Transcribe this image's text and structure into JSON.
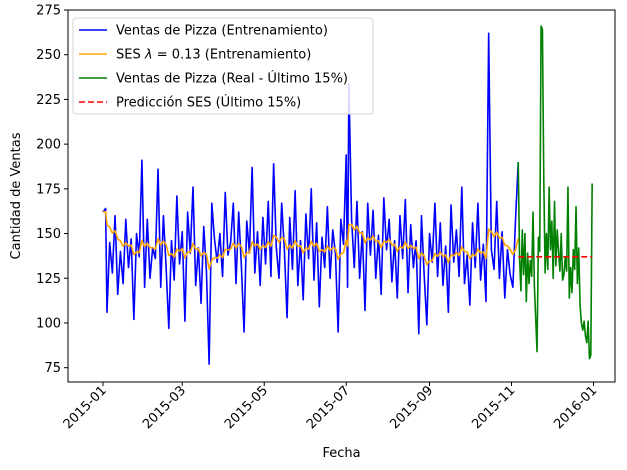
{
  "chart_data": {
    "type": "line",
    "xlabel": "Fecha",
    "ylabel": "Cantidad de Ventas",
    "xlim": [
      "2014-12-06",
      "2016-01-17"
    ],
    "ylim": [
      67,
      275
    ],
    "x_ticks": [
      "2015-01",
      "2015-03",
      "2015-05",
      "2015-07",
      "2015-09",
      "2015-11",
      "2016-01"
    ],
    "x_tick_dates": [
      "2015-01-01",
      "2015-03-01",
      "2015-05-01",
      "2015-07-01",
      "2015-09-01",
      "2015-11-01",
      "2016-01-01"
    ],
    "y_ticks": [
      75,
      100,
      125,
      150,
      175,
      200,
      225,
      250,
      275
    ],
    "grid": false,
    "legend_position": "top-left",
    "series": [
      {
        "name": "Ventas de Pizza (Entrenamiento)",
        "color": "#0000ff",
        "style": "solid",
        "points": [
          [
            "2015-01-01",
            162
          ],
          [
            "2015-01-03",
            164
          ],
          [
            "2015-01-04",
            106
          ],
          [
            "2015-01-06",
            145
          ],
          [
            "2015-01-08",
            128
          ],
          [
            "2015-01-10",
            160
          ],
          [
            "2015-01-12",
            116
          ],
          [
            "2015-01-14",
            140
          ],
          [
            "2015-01-16",
            122
          ],
          [
            "2015-01-18",
            158
          ],
          [
            "2015-01-20",
            131
          ],
          [
            "2015-01-22",
            147
          ],
          [
            "2015-01-24",
            102
          ],
          [
            "2015-01-26",
            150
          ],
          [
            "2015-01-28",
            137
          ],
          [
            "2015-01-30",
            191
          ],
          [
            "2015-02-01",
            120
          ],
          [
            "2015-02-03",
            158
          ],
          [
            "2015-02-05",
            125
          ],
          [
            "2015-02-07",
            142
          ],
          [
            "2015-02-09",
            136
          ],
          [
            "2015-02-11",
            186
          ],
          [
            "2015-02-13",
            120
          ],
          [
            "2015-02-15",
            160
          ],
          [
            "2015-02-17",
            131
          ],
          [
            "2015-02-19",
            97
          ],
          [
            "2015-02-21",
            146
          ],
          [
            "2015-02-23",
            124
          ],
          [
            "2015-02-25",
            171
          ],
          [
            "2015-02-27",
            133
          ],
          [
            "2015-03-01",
            151
          ],
          [
            "2015-03-03",
            101
          ],
          [
            "2015-03-05",
            162
          ],
          [
            "2015-03-07",
            139
          ],
          [
            "2015-03-09",
            176
          ],
          [
            "2015-03-11",
            121
          ],
          [
            "2015-03-13",
            142
          ],
          [
            "2015-03-15",
            111
          ],
          [
            "2015-03-17",
            154
          ],
          [
            "2015-03-19",
            129
          ],
          [
            "2015-03-21",
            77
          ],
          [
            "2015-03-23",
            167
          ],
          [
            "2015-03-25",
            147
          ],
          [
            "2015-03-27",
            134
          ],
          [
            "2015-03-29",
            150
          ],
          [
            "2015-03-31",
            126
          ],
          [
            "2015-04-02",
            173
          ],
          [
            "2015-04-04",
            138
          ],
          [
            "2015-04-06",
            145
          ],
          [
            "2015-04-08",
            167
          ],
          [
            "2015-04-10",
            122
          ],
          [
            "2015-04-12",
            162
          ],
          [
            "2015-04-14",
            132
          ],
          [
            "2015-04-16",
            95
          ],
          [
            "2015-04-18",
            157
          ],
          [
            "2015-04-20",
            139
          ],
          [
            "2015-04-22",
            187
          ],
          [
            "2015-04-24",
            128
          ],
          [
            "2015-04-26",
            151
          ],
          [
            "2015-04-28",
            121
          ],
          [
            "2015-04-30",
            159
          ],
          [
            "2015-05-02",
            133
          ],
          [
            "2015-05-04",
            168
          ],
          [
            "2015-05-06",
            126
          ],
          [
            "2015-05-08",
            189
          ],
          [
            "2015-05-10",
            142
          ],
          [
            "2015-05-12",
            125
          ],
          [
            "2015-05-14",
            167
          ],
          [
            "2015-05-16",
            141
          ],
          [
            "2015-05-18",
            103
          ],
          [
            "2015-05-20",
            159
          ],
          [
            "2015-05-22",
            130
          ],
          [
            "2015-05-24",
            174
          ],
          [
            "2015-05-26",
            121
          ],
          [
            "2015-05-28",
            146
          ],
          [
            "2015-05-30",
            113
          ],
          [
            "2015-06-01",
            161
          ],
          [
            "2015-06-03",
            136
          ],
          [
            "2015-06-05",
            175
          ],
          [
            "2015-06-07",
            124
          ],
          [
            "2015-06-09",
            156
          ],
          [
            "2015-06-11",
            109
          ],
          [
            "2015-06-13",
            148
          ],
          [
            "2015-06-15",
            131
          ],
          [
            "2015-06-17",
            165
          ],
          [
            "2015-06-19",
            125
          ],
          [
            "2015-06-21",
            152
          ],
          [
            "2015-06-23",
            139
          ],
          [
            "2015-06-25",
            95
          ],
          [
            "2015-06-27",
            158
          ],
          [
            "2015-06-29",
            144
          ],
          [
            "2015-07-01",
            194
          ],
          [
            "2015-07-02",
            120
          ],
          [
            "2015-07-03",
            234
          ],
          [
            "2015-07-05",
            158
          ],
          [
            "2015-07-07",
            131
          ],
          [
            "2015-07-09",
            168
          ],
          [
            "2015-07-11",
            125
          ],
          [
            "2015-07-13",
            151
          ],
          [
            "2015-07-15",
            107
          ],
          [
            "2015-07-17",
            167
          ],
          [
            "2015-07-19",
            138
          ],
          [
            "2015-07-21",
            163
          ],
          [
            "2015-07-23",
            125
          ],
          [
            "2015-07-25",
            149
          ],
          [
            "2015-07-27",
            116
          ],
          [
            "2015-07-29",
            170
          ],
          [
            "2015-07-31",
            141
          ],
          [
            "2015-08-02",
            158
          ],
          [
            "2015-08-04",
            123
          ],
          [
            "2015-08-06",
            146
          ],
          [
            "2015-08-08",
            114
          ],
          [
            "2015-08-10",
            160
          ],
          [
            "2015-08-12",
            136
          ],
          [
            "2015-08-14",
            169
          ],
          [
            "2015-08-16",
            117
          ],
          [
            "2015-08-18",
            155
          ],
          [
            "2015-08-20",
            131
          ],
          [
            "2015-08-22",
            146
          ],
          [
            "2015-08-24",
            94
          ],
          [
            "2015-08-26",
            160
          ],
          [
            "2015-08-28",
            127
          ],
          [
            "2015-08-30",
            99
          ],
          [
            "2015-09-01",
            150
          ],
          [
            "2015-09-03",
            134
          ],
          [
            "2015-09-05",
            167
          ],
          [
            "2015-09-07",
            126
          ],
          [
            "2015-09-09",
            156
          ],
          [
            "2015-09-11",
            121
          ],
          [
            "2015-09-13",
            143
          ],
          [
            "2015-09-15",
            106
          ],
          [
            "2015-09-17",
            166
          ],
          [
            "2015-09-19",
            134
          ],
          [
            "2015-09-21",
            152
          ],
          [
            "2015-09-23",
            126
          ],
          [
            "2015-09-25",
            176
          ],
          [
            "2015-09-27",
            122
          ],
          [
            "2015-09-29",
            138
          ],
          [
            "2015-10-01",
            110
          ],
          [
            "2015-10-03",
            156
          ],
          [
            "2015-10-05",
            131
          ],
          [
            "2015-10-07",
            167
          ],
          [
            "2015-10-09",
            124
          ],
          [
            "2015-10-11",
            144
          ],
          [
            "2015-10-13",
            112
          ],
          [
            "2015-10-15",
            262
          ],
          [
            "2015-10-17",
            141
          ],
          [
            "2015-10-19",
            130
          ],
          [
            "2015-10-21",
            168
          ],
          [
            "2015-10-23",
            125
          ],
          [
            "2015-10-25",
            151
          ],
          [
            "2015-10-27",
            114
          ],
          [
            "2015-10-29",
            141
          ],
          [
            "2015-10-31",
            127
          ],
          [
            "2015-11-02",
            120
          ],
          [
            "2015-11-04",
            158
          ],
          [
            "2015-11-06",
            190
          ]
        ]
      },
      {
        "name": "SES $\\lambda = 0.13$ (Entrenamiento)",
        "color": "#ffa500",
        "style": "solid",
        "derived": "ses",
        "alpha": 0.13,
        "of": 0
      },
      {
        "name": "Ventas de Pizza (Real - Último 15%)",
        "color": "#008000",
        "style": "solid",
        "points": [
          [
            "2015-11-06",
            190
          ],
          [
            "2015-11-07",
            136
          ],
          [
            "2015-11-08",
            118
          ],
          [
            "2015-11-09",
            152
          ],
          [
            "2015-11-10",
            127
          ],
          [
            "2015-11-11",
            150
          ],
          [
            "2015-11-12",
            112
          ],
          [
            "2015-11-13",
            139
          ],
          [
            "2015-11-14",
            122
          ],
          [
            "2015-11-15",
            135
          ],
          [
            "2015-11-16",
            126
          ],
          [
            "2015-11-17",
            162
          ],
          [
            "2015-11-18",
            121
          ],
          [
            "2015-11-20",
            84
          ],
          [
            "2015-11-21",
            148
          ],
          [
            "2015-11-22",
            140
          ],
          [
            "2015-11-23",
            266
          ],
          [
            "2015-11-24",
            264
          ],
          [
            "2015-11-25",
            181
          ],
          [
            "2015-11-26",
            128
          ],
          [
            "2015-11-27",
            150
          ],
          [
            "2015-11-28",
            130
          ],
          [
            "2015-11-29",
            176
          ],
          [
            "2015-11-30",
            141
          ],
          [
            "2015-12-01",
            157
          ],
          [
            "2015-12-02",
            125
          ],
          [
            "2015-12-03",
            168
          ],
          [
            "2015-12-04",
            132
          ],
          [
            "2015-12-05",
            152
          ],
          [
            "2015-12-06",
            140
          ],
          [
            "2015-12-07",
            129
          ],
          [
            "2015-12-08",
            150
          ],
          [
            "2015-12-09",
            124
          ],
          [
            "2015-12-10",
            127
          ],
          [
            "2015-12-11",
            137
          ],
          [
            "2015-12-12",
            129
          ],
          [
            "2015-12-13",
            176
          ],
          [
            "2015-12-14",
            114
          ],
          [
            "2015-12-15",
            131
          ],
          [
            "2015-12-16",
            117
          ],
          [
            "2015-12-17",
            141
          ],
          [
            "2015-12-18",
            130
          ],
          [
            "2015-12-19",
            165
          ],
          [
            "2015-12-20",
            122
          ],
          [
            "2015-12-21",
            142
          ],
          [
            "2015-12-22",
            110
          ],
          [
            "2015-12-23",
            100
          ],
          [
            "2015-12-24",
            96
          ],
          [
            "2015-12-25",
            101
          ],
          [
            "2015-12-26",
            93
          ],
          [
            "2015-12-27",
            89
          ],
          [
            "2015-12-28",
            101
          ],
          [
            "2015-12-29",
            80
          ],
          [
            "2015-12-30",
            82
          ],
          [
            "2015-12-31",
            178
          ]
        ]
      },
      {
        "name": "Predicción SES (Último 15%)",
        "color": "#ff0000",
        "style": "dashed",
        "points": [
          [
            "2015-11-06",
            137
          ],
          [
            "2015-12-31",
            137
          ]
        ]
      }
    ]
  }
}
